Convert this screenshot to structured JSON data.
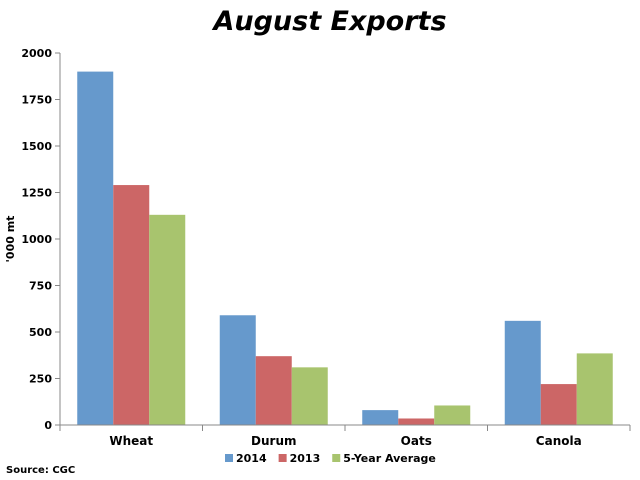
{
  "chart_data": {
    "type": "bar",
    "title": "August Exports",
    "ylabel": "'000 mt",
    "xlabel": "",
    "categories": [
      "Wheat",
      "Durum",
      "Oats",
      "Canola"
    ],
    "series": [
      {
        "name": "2014",
        "values": [
          1900,
          590,
          80,
          560
        ],
        "color": "#6699cc"
      },
      {
        "name": "2013",
        "values": [
          1290,
          370,
          35,
          220
        ],
        "color": "#cc6666"
      },
      {
        "name": "5-Year Average",
        "values": [
          1130,
          310,
          105,
          385
        ],
        "color": "#a8c46e"
      }
    ],
    "ylim": [
      0,
      2000
    ],
    "yticks": [
      "0",
      "250",
      "500",
      "750",
      "1000",
      "1250",
      "1500",
      "1750",
      "2000"
    ],
    "grid": false,
    "legend_position": "bottom",
    "source": "Source: CGC"
  }
}
